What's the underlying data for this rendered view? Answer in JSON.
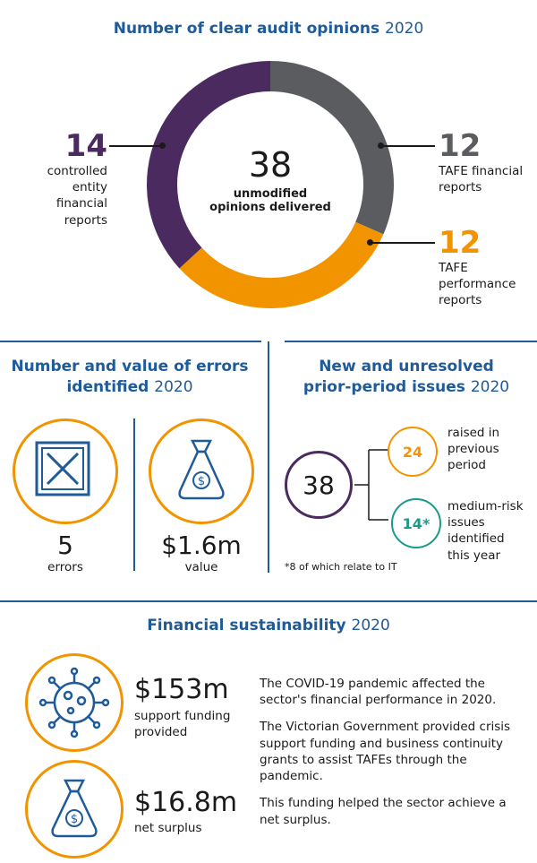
{
  "section1": {
    "title": "Number of clear audit opinions",
    "year": "2020",
    "center_value": "38",
    "center_label_line1": "unmodified",
    "center_label_line2": "opinions delivered",
    "left_value": "14",
    "left_label": [
      "controlled",
      "entity",
      "financial",
      "reports"
    ],
    "right_top_value": "12",
    "right_top_label": [
      "TAFE financial",
      "reports"
    ],
    "right_bottom_value": "12",
    "right_bottom_label": [
      "TAFE",
      "performance",
      "reports"
    ],
    "colors": {
      "controlled": "#4b2a5f",
      "financial": "#5a5c5f",
      "performance": "#f29400"
    },
    "chart_data": {
      "type": "pie",
      "categories": [
        "controlled entity financial reports",
        "TAFE financial reports",
        "TAFE performance reports"
      ],
      "values": [
        14,
        12,
        12
      ]
    }
  },
  "section2": {
    "title_line1": "Number and value of errors",
    "title_line2": "identified",
    "year": "2020",
    "errors_value": "5",
    "errors_label": "errors",
    "value_value": "$1.6m",
    "value_label": "value"
  },
  "section3": {
    "title_line1": "New and unresolved",
    "title_line2": "prior-period issues",
    "year": "2020",
    "total": "38",
    "node1_value": "24",
    "node1_label": [
      "raised in",
      "previous",
      "period"
    ],
    "node2_value": "14*",
    "node2_label": [
      "medium-risk",
      "issues",
      "identified",
      "this year"
    ],
    "footnote": "*8 of which relate to IT",
    "colors": {
      "total": "#4b2a5f",
      "prior": "#f29400",
      "new": "#1a9a8a"
    }
  },
  "section4": {
    "title": "Financial sustainability",
    "year": "2020",
    "support_value": "$153m",
    "support_label": [
      "support funding",
      "provided"
    ],
    "surplus_value": "$16.8m",
    "surplus_label": "net surplus",
    "paragraphs": [
      "The COVID-19 pandemic affected the sector's financial performance in 2020.",
      "The Victorian Government provided crisis support funding and business continuity grants to assist TAFEs through the pandemic.",
      "This funding helped the sector achieve a net surplus."
    ]
  }
}
